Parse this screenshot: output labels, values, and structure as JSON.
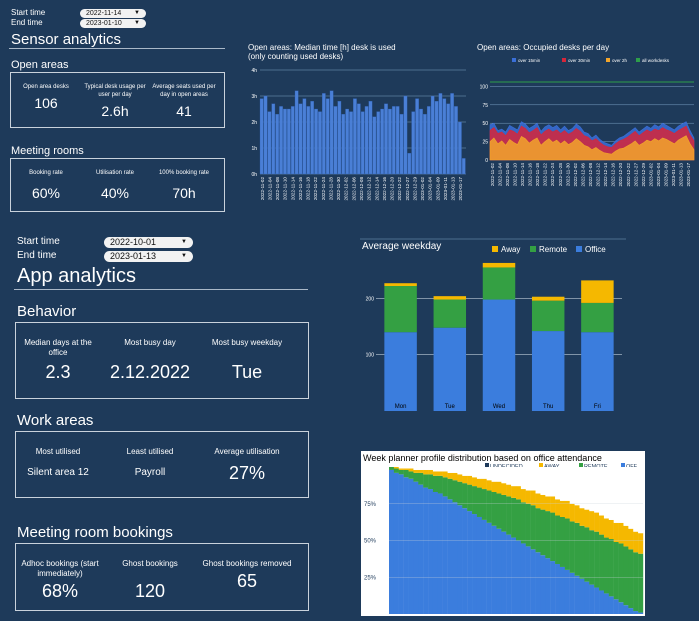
{
  "sensor": {
    "start_label": "Start time",
    "end_label": "End time",
    "start_value": "2022-11-14",
    "end_value": "2023-01-10",
    "title": "Sensor analytics",
    "open_areas": {
      "heading": "Open areas",
      "kpis": [
        {
          "label": "Open area desks",
          "value": "106"
        },
        {
          "label": "Typical desk usage per user per day",
          "value": "2.6h"
        },
        {
          "label": "Average seats used per day in open areas",
          "value": "41"
        }
      ]
    },
    "meeting_rooms": {
      "heading": "Meeting rooms",
      "kpis": [
        {
          "label": "Booking rate",
          "value": "60%"
        },
        {
          "label": "Utilisation rate",
          "value": "40%"
        },
        {
          "label": "100% booking rate",
          "value": "70h"
        }
      ]
    }
  },
  "app": {
    "start_label": "Start time",
    "end_label": "End time",
    "start_value": "2022-10-01",
    "end_value": "2023-01-13",
    "title": "App analytics",
    "behavior": {
      "heading": "Behavior",
      "kpis": [
        {
          "label": "Median days at the office",
          "value": "2.3"
        },
        {
          "label": "Most busy day",
          "value": "2.12.2022"
        },
        {
          "label": "Most busy weekday",
          "value": "Tue"
        }
      ]
    },
    "work_areas": {
      "heading": "Work areas",
      "kpis": [
        {
          "label": "Most utilised",
          "value": "Silent area 12"
        },
        {
          "label": "Least utilised",
          "value": "Payroll"
        },
        {
          "label": "Average utilisation",
          "value": "27%"
        }
      ]
    },
    "meeting_bookings": {
      "heading": "Meeting room bookings",
      "kpis": [
        {
          "label": "Adhoc bookings (start immediately)",
          "value": "68%"
        },
        {
          "label": "Ghost bookings",
          "value": "120"
        },
        {
          "label": "Ghost bookings removed",
          "value": "65"
        }
      ]
    }
  },
  "colors": {
    "background": "#1e3a5a",
    "office": "#3b7ddd",
    "remote": "#34a043",
    "away": "#f5b800",
    "over_15min": "#3a6fd8",
    "over_30min": "#d6263a",
    "over_2h": "#f2a52b",
    "all_workdesks": "#2e9e4a"
  },
  "chart_data": [
    {
      "type": "bar",
      "title": "Open areas: Median time [h] desk is used",
      "subtitle": "(only counting used desks)",
      "ylabel": "",
      "ylim": [
        0,
        4
      ],
      "yticks": [
        "0h",
        "1h",
        "2h",
        "3h",
        "4h"
      ],
      "categories": [
        "2022-11-02",
        "2022-11-03",
        "2022-11-04",
        "2022-11-07",
        "2022-11-08",
        "2022-11-09",
        "2022-11-10",
        "2022-11-11",
        "2022-11-14",
        "2022-11-15",
        "2022-11-16",
        "2022-11-17",
        "2022-11-18",
        "2022-11-21",
        "2022-11-22",
        "2022-11-23",
        "2022-11-24",
        "2022-11-25",
        "2022-11-28",
        "2022-11-29",
        "2022-11-30",
        "2022-12-01",
        "2022-12-02",
        "2022-12-05",
        "2022-12-06",
        "2022-12-07",
        "2022-12-08",
        "2022-12-09",
        "2022-12-12",
        "2022-12-13",
        "2022-12-14",
        "2022-12-15",
        "2022-12-16",
        "2022-12-19",
        "2022-12-20",
        "2022-12-21",
        "2022-12-22",
        "2022-12-23",
        "2022-12-27",
        "2022-12-28",
        "2022-12-29",
        "2022-12-30",
        "2023-01-02",
        "2023-01-03",
        "2023-01-04",
        "2023-01-05",
        "2023-01-09",
        "2023-01-10",
        "2023-01-11",
        "2023-01-12",
        "2023-01-13",
        "2023-01-16",
        "2023-01-17"
      ],
      "tick_labels": [
        "2022-11-02",
        "2022-11-04",
        "2022-11-08",
        "2022-11-10",
        "2022-11-14",
        "2022-11-16",
        "2022-11-18",
        "2022-11-22",
        "2022-11-24",
        "2022-11-28",
        "2022-11-30",
        "2022-12-02",
        "2022-12-06",
        "2022-12-08",
        "2022-12-12",
        "2022-12-14",
        "2022-12-16",
        "2022-12-20",
        "2022-12-22",
        "2022-12-27",
        "2022-12-29",
        "2023-01-02",
        "2023-01-04",
        "2023-01-09",
        "2023-01-11",
        "2023-01-13",
        "2023-01-17"
      ],
      "values": [
        2.9,
        3.0,
        2.4,
        2.7,
        2.3,
        2.6,
        2.5,
        2.5,
        2.6,
        3.2,
        2.7,
        2.9,
        2.6,
        2.8,
        2.5,
        2.4,
        3.1,
        2.9,
        3.2,
        2.6,
        2.8,
        2.3,
        2.5,
        2.4,
        2.9,
        2.7,
        2.4,
        2.6,
        2.8,
        2.2,
        2.4,
        2.5,
        2.7,
        2.5,
        2.6,
        2.6,
        2.3,
        3.0,
        0.8,
        2.4,
        2.9,
        2.5,
        2.3,
        2.6,
        3.0,
        2.8,
        3.1,
        2.9,
        2.7,
        3.1,
        2.6,
        2.0,
        0.6
      ]
    },
    {
      "type": "line",
      "title": "Open areas: Occupied desks per day",
      "ylim": [
        0,
        125
      ],
      "yticks": [
        0,
        25,
        50,
        75,
        100
      ],
      "legend": [
        "over 15min",
        "over 30min",
        "over 2h",
        "all workdesks"
      ],
      "legend_position": "top",
      "tick_labels": [
        "2022-11-02",
        "2022-11-04",
        "2022-11-08",
        "2022-11-10",
        "2022-11-14",
        "2022-11-16",
        "2022-11-18",
        "2022-11-22",
        "2022-11-24",
        "2022-11-28",
        "2022-11-30",
        "2022-12-02",
        "2022-12-06",
        "2022-12-08",
        "2022-12-12",
        "2022-12-14",
        "2022-12-16",
        "2022-12-20",
        "2022-12-22",
        "2022-12-27",
        "2022-12-29",
        "2023-01-02",
        "2023-01-04",
        "2023-01-09",
        "2023-01-11",
        "2023-01-13",
        "2023-01-17"
      ],
      "series": [
        {
          "name": "over 15min",
          "values": [
            48,
            50,
            40,
            42,
            38,
            47,
            44,
            41,
            52,
            49,
            43,
            46,
            50,
            39,
            45,
            48,
            44,
            47,
            41,
            46,
            40,
            43,
            49,
            45,
            38,
            36,
            30,
            34,
            28,
            24,
            22,
            20,
            26,
            30,
            32,
            36,
            40,
            44,
            38,
            42,
            46,
            43,
            48,
            45,
            50,
            47,
            44,
            41,
            46,
            49,
            52,
            40,
            30
          ]
        },
        {
          "name": "over 30min",
          "values": [
            40,
            44,
            36,
            38,
            33,
            41,
            39,
            35,
            46,
            43,
            37,
            40,
            44,
            34,
            39,
            42,
            38,
            41,
            36,
            40,
            35,
            38,
            43,
            39,
            33,
            31,
            26,
            29,
            24,
            20,
            18,
            17,
            22,
            26,
            28,
            31,
            35,
            39,
            33,
            37,
            41,
            38,
            42,
            40,
            44,
            41,
            39,
            36,
            40,
            43,
            46,
            34,
            26
          ]
        },
        {
          "name": "over 2h",
          "values": [
            25,
            30,
            22,
            26,
            20,
            28,
            24,
            21,
            32,
            29,
            23,
            27,
            30,
            20,
            25,
            29,
            24,
            27,
            22,
            26,
            21,
            24,
            29,
            25,
            20,
            18,
            14,
            17,
            13,
            10,
            9,
            8,
            12,
            15,
            16,
            19,
            22,
            26,
            20,
            23,
            27,
            25,
            29,
            26,
            30,
            28,
            25,
            22,
            27,
            30,
            33,
            22,
            14
          ]
        },
        {
          "name": "all workdesks",
          "values": [
            106,
            106,
            106,
            106,
            106,
            106,
            106,
            106,
            106,
            106,
            106,
            106,
            106,
            106,
            106,
            106,
            106,
            106,
            106,
            106,
            106,
            106,
            106,
            106,
            106,
            106,
            106,
            106,
            106,
            106,
            106,
            106,
            106,
            106,
            106,
            106,
            106,
            106,
            106,
            106,
            106,
            106,
            106,
            106,
            106,
            106,
            106,
            106,
            106,
            106,
            106,
            106,
            106
          ]
        }
      ]
    },
    {
      "type": "bar",
      "title": "Average weekday",
      "stacked": true,
      "ylim": [
        0,
        270
      ],
      "yticks": [
        100,
        200
      ],
      "legend": [
        "Away",
        "Remote",
        "Office"
      ],
      "legend_position": "top",
      "categories": [
        "Mon",
        "Tue",
        "Wed",
        "Thu",
        "Fri"
      ],
      "series": [
        {
          "name": "Office",
          "values": [
            140,
            148,
            198,
            142,
            140
          ]
        },
        {
          "name": "Remote",
          "values": [
            82,
            50,
            57,
            54,
            52
          ]
        },
        {
          "name": "Away",
          "values": [
            5,
            6,
            8,
            7,
            40
          ]
        }
      ]
    },
    {
      "type": "area",
      "title": "Week planner profile distribution based on office attendance",
      "ylim": [
        0,
        1
      ],
      "yticks": [
        "25%",
        "50%",
        "75%"
      ],
      "legend": [
        "UNDECIDED",
        "AWAY",
        "REMOTE",
        "OFF"
      ],
      "legend_position": "top",
      "series": [
        {
          "name": "OFF",
          "values": [
            0.98,
            0.96,
            0.95,
            0.93,
            0.92,
            0.9,
            0.88,
            0.86,
            0.85,
            0.83,
            0.82,
            0.8,
            0.78,
            0.76,
            0.74,
            0.72,
            0.7,
            0.68,
            0.66,
            0.64,
            0.62,
            0.6,
            0.58,
            0.56,
            0.54,
            0.52,
            0.5,
            0.48,
            0.46,
            0.44,
            0.42,
            0.4,
            0.38,
            0.36,
            0.34,
            0.32,
            0.3,
            0.28,
            0.26,
            0.24,
            0.22,
            0.2,
            0.18,
            0.16,
            0.14,
            0.12,
            0.1,
            0.08,
            0.06,
            0.04,
            0.02,
            0.01
          ]
        },
        {
          "name": "REMOTE",
          "values": [
            0.02,
            0.03,
            0.03,
            0.05,
            0.05,
            0.06,
            0.08,
            0.09,
            0.1,
            0.11,
            0.12,
            0.13,
            0.14,
            0.15,
            0.16,
            0.17,
            0.18,
            0.19,
            0.2,
            0.21,
            0.22,
            0.23,
            0.24,
            0.25,
            0.26,
            0.27,
            0.28,
            0.28,
            0.29,
            0.3,
            0.3,
            0.31,
            0.32,
            0.33,
            0.33,
            0.34,
            0.35,
            0.35,
            0.36,
            0.36,
            0.37,
            0.37,
            0.38,
            0.38,
            0.38,
            0.39,
            0.39,
            0.4,
            0.4,
            0.4,
            0.4,
            0.4
          ]
        },
        {
          "name": "AWAY",
          "values": [
            0,
            0.01,
            0.01,
            0.01,
            0.02,
            0.02,
            0.02,
            0.03,
            0.03,
            0.03,
            0.03,
            0.04,
            0.04,
            0.05,
            0.05,
            0.05,
            0.06,
            0.06,
            0.06,
            0.07,
            0.07,
            0.07,
            0.08,
            0.08,
            0.08,
            0.08,
            0.09,
            0.09,
            0.09,
            0.1,
            0.1,
            0.1,
            0.1,
            0.11,
            0.11,
            0.11,
            0.12,
            0.12,
            0.12,
            0.12,
            0.12,
            0.13,
            0.13,
            0.13,
            0.13,
            0.13,
            0.13,
            0.14,
            0.14,
            0.14,
            0.14,
            0.14
          ]
        },
        {
          "name": "UNDECIDED",
          "values": [
            0,
            0,
            0.01,
            0.01,
            0.01,
            0.02,
            0.02,
            0.02,
            0.02,
            0.03,
            0.03,
            0.03,
            0.04,
            0.04,
            0.05,
            0.06,
            0.06,
            0.07,
            0.08,
            0.08,
            0.09,
            0.1,
            0.1,
            0.11,
            0.12,
            0.13,
            0.13,
            0.15,
            0.16,
            0.16,
            0.18,
            0.19,
            0.2,
            0.2,
            0.22,
            0.23,
            0.23,
            0.25,
            0.26,
            0.28,
            0.29,
            0.3,
            0.31,
            0.33,
            0.35,
            0.36,
            0.38,
            0.38,
            0.4,
            0.42,
            0.44,
            0.45
          ]
        }
      ]
    }
  ]
}
